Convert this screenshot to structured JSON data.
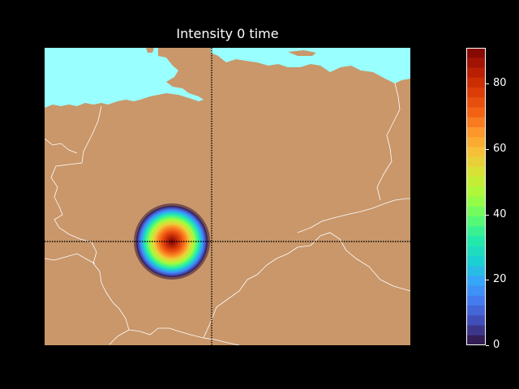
{
  "title": "Intensity 0 time",
  "map": {
    "land_color": "#c9976a",
    "sea_color": "#99ffff",
    "border_color": "#ffffff",
    "crosshair_color": "#000000",
    "crosshair_style": "dotted",
    "region": "Germany and surroundings"
  },
  "chart_data": {
    "type": "heatmap",
    "colormap": "turbo",
    "field": "single circular intensity blob, maximum at centre, decreasing outward",
    "peak_value": 90,
    "colorbar": {
      "min": 0,
      "max": 91,
      "ticks": [
        "0",
        "20",
        "40",
        "60",
        "80"
      ],
      "tick_values": [
        0,
        20,
        40,
        60,
        80
      ],
      "levels": 30
    }
  }
}
